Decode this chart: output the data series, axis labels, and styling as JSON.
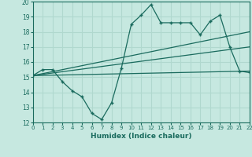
{
  "xlabel": "Humidex (Indice chaleur)",
  "xlim": [
    0,
    22
  ],
  "ylim": [
    12,
    20
  ],
  "yticks": [
    12,
    13,
    14,
    15,
    16,
    17,
    18,
    19,
    20
  ],
  "xticks": [
    0,
    1,
    2,
    3,
    4,
    5,
    6,
    7,
    8,
    9,
    10,
    11,
    12,
    13,
    14,
    15,
    16,
    17,
    18,
    19,
    20,
    21,
    22
  ],
  "bg_color": "#c6e8e0",
  "line_color": "#1a6b5e",
  "grid_color": "#b0d8ce",
  "line1_x": [
    0,
    1,
    2,
    3,
    4,
    5,
    6,
    7,
    8,
    9,
    10,
    11,
    12,
    13,
    14,
    15,
    16,
    17,
    18,
    19,
    20,
    21,
    22
  ],
  "line1_y": [
    15.1,
    15.5,
    15.5,
    14.7,
    14.1,
    13.7,
    12.6,
    12.2,
    13.3,
    15.6,
    18.5,
    19.1,
    19.8,
    18.6,
    18.6,
    18.6,
    18.6,
    17.8,
    18.7,
    19.1,
    17.0,
    15.4,
    15.3
  ],
  "line2_x": [
    0,
    22
  ],
  "line2_y": [
    15.1,
    18.0
  ],
  "line3_x": [
    0,
    22
  ],
  "line3_y": [
    15.1,
    17.0
  ],
  "line4_x": [
    0,
    22
  ],
  "line4_y": [
    15.1,
    15.4
  ]
}
